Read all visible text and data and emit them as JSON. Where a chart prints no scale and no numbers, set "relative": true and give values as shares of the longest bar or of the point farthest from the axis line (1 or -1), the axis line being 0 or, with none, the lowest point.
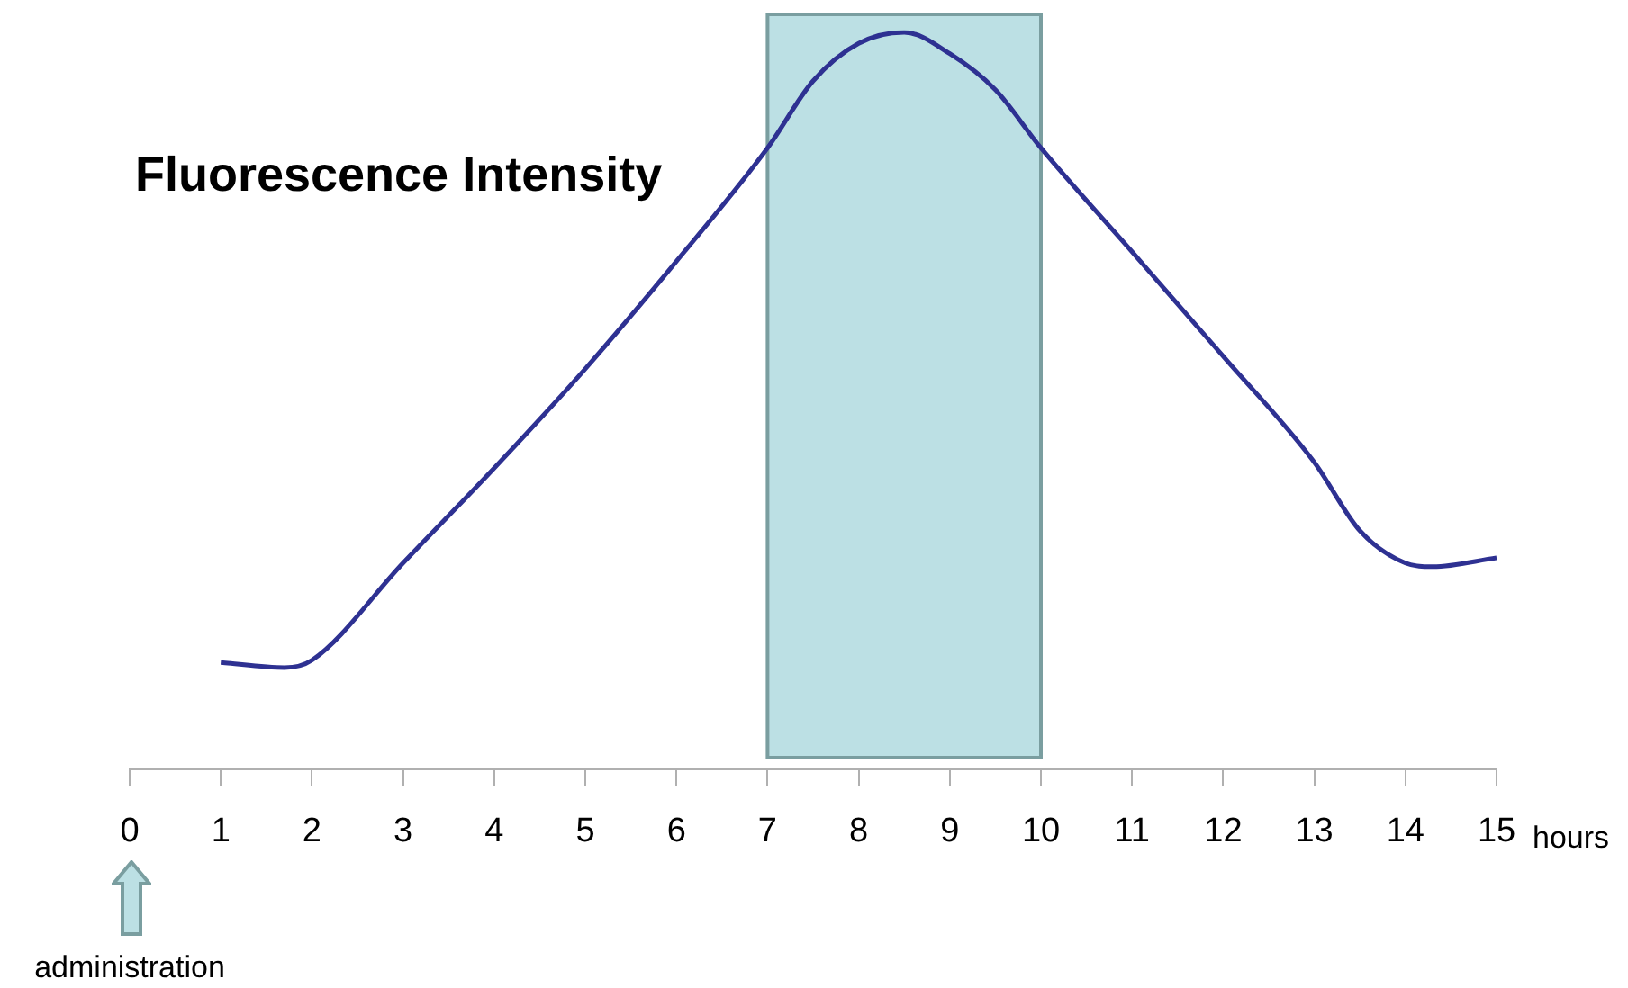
{
  "chart_data": {
    "type": "line",
    "title": "Fluorescence Intensity",
    "xlabel": "hours",
    "relative": true,
    "x": [
      1,
      1.7,
      2,
      3,
      4,
      5,
      6,
      7,
      7.5,
      8,
      8.5,
      9,
      9.5,
      10,
      11,
      12,
      13,
      13.5,
      14,
      14.3,
      15
    ],
    "series": [
      {
        "color": "#2e3192",
        "values": [
          0.144,
          0.137,
          0.147,
          0.279,
          0.408,
          0.543,
          0.689,
          0.843,
          0.934,
          0.985,
          1,
          0.971,
          0.922,
          0.843,
          0.702,
          0.56,
          0.416,
          0.323,
          0.279,
          0.274,
          0.286
        ]
      }
    ],
    "xlim": [
      0,
      15
    ],
    "xticks": [
      0,
      1,
      2,
      3,
      4,
      5,
      6,
      7,
      8,
      9,
      10,
      11,
      12,
      13,
      14,
      15
    ],
    "bands": [
      {
        "axis": "x",
        "from": 7,
        "to": 10,
        "color": "#bce0e4"
      }
    ],
    "annotations": [
      "administration"
    ],
    "marker": "none",
    "line_style": "solid",
    "legend": false
  }
}
